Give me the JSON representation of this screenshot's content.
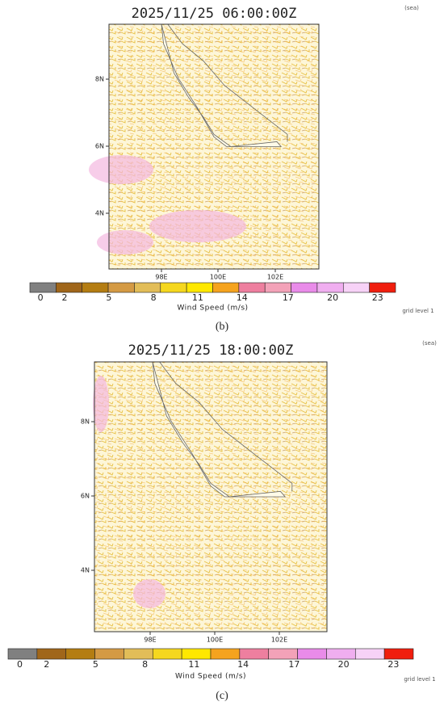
{
  "panels": [
    {
      "title": "2025/11/25 06:00:00Z",
      "tag": "(sea)",
      "yticks": [
        "8N",
        "6N",
        "4N"
      ],
      "xticks": [
        "98E",
        "100E",
        "102E"
      ],
      "colorbar": {
        "colors": [
          "#808080",
          "#a0661a",
          "#b47d12",
          "#d49a44",
          "#e2bd58",
          "#f5d71e",
          "#ffe800",
          "#f5a31e",
          "#ee7f9f",
          "#f3a2b8",
          "#e98be9",
          "#f0aef0",
          "#f7d2f7",
          "#f01e0e"
        ],
        "labels": [
          0,
          2,
          5,
          8,
          11,
          14,
          17,
          20,
          23
        ],
        "title": "Wind Speed (m/s)"
      },
      "note": "grid level 1",
      "caption": "(b)"
    },
    {
      "title": "2025/11/25 18:00:00Z",
      "tag": "(sea)",
      "yticks": [
        "8N",
        "6N",
        "4N"
      ],
      "xticks": [
        "98E",
        "100E",
        "102E"
      ],
      "colorbar": {
        "colors": [
          "#808080",
          "#a0661a",
          "#b47d12",
          "#d49a44",
          "#e2bd58",
          "#f5d71e",
          "#ffe800",
          "#f5a31e",
          "#ee7f9f",
          "#f3a2b8",
          "#e98be9",
          "#f0aef0",
          "#f7d2f7",
          "#f01e0e"
        ],
        "labels": [
          0,
          2,
          5,
          8,
          11,
          14,
          17,
          20,
          23
        ],
        "title": "Wind Speed (m/s)"
      },
      "note": "grid level 1",
      "caption": "(c)"
    }
  ]
}
